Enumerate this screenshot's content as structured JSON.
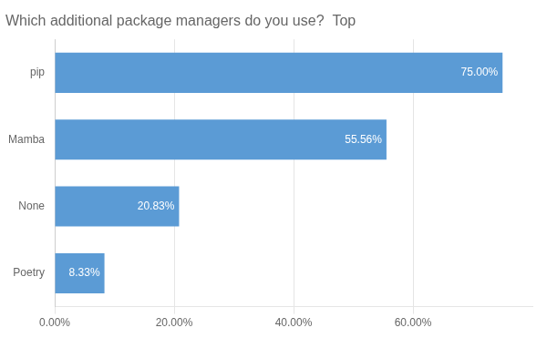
{
  "chart_data": {
    "type": "bar",
    "orientation": "horizontal",
    "title": "Which additional package managers do you use?  Top",
    "categories": [
      "Poetry",
      "None",
      "Mamba",
      "pip"
    ],
    "values": [
      8.33,
      20.83,
      55.56,
      75.0
    ],
    "value_labels": [
      "8.33%",
      "20.83%",
      "55.56%",
      "75.00%"
    ],
    "data_labels": true,
    "color": "#5B9BD5",
    "xlim": [
      0,
      80
    ],
    "xticks": [
      {
        "value": 0,
        "label": "0.00%"
      },
      {
        "value": 20,
        "label": "20.00%"
      },
      {
        "value": 40,
        "label": "40.00%"
      },
      {
        "value": 60,
        "label": "60.00%"
      }
    ],
    "grid": true
  }
}
